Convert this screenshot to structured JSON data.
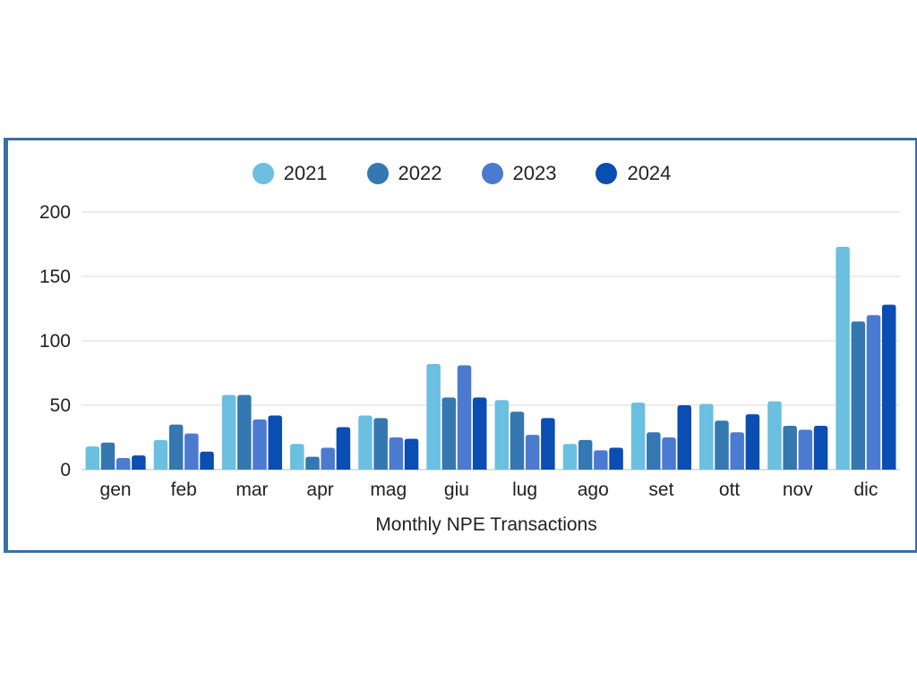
{
  "chart_data": {
    "type": "bar",
    "xlabel": "Monthly NPE Transactions",
    "ylim": [
      0,
      200
    ],
    "yticks": [
      0,
      50,
      100,
      150,
      200
    ],
    "grid": true,
    "legend_position": "top-center",
    "categories": [
      "gen",
      "feb",
      "mar",
      "apr",
      "mag",
      "giu",
      "lug",
      "ago",
      "set",
      "ott",
      "nov",
      "dic"
    ],
    "series": [
      {
        "name": "2021",
        "color": "#6bbfe0",
        "values": [
          18,
          23,
          58,
          20,
          42,
          82,
          54,
          20,
          52,
          51,
          53,
          173
        ]
      },
      {
        "name": "2022",
        "color": "#3577b0",
        "values": [
          21,
          35,
          58,
          10,
          40,
          56,
          45,
          23,
          29,
          38,
          34,
          115
        ]
      },
      {
        "name": "2023",
        "color": "#4b7bd0",
        "values": [
          9,
          28,
          39,
          17,
          25,
          81,
          27,
          15,
          25,
          29,
          31,
          120
        ]
      },
      {
        "name": "2024",
        "color": "#0a4db3",
        "values": [
          11,
          14,
          42,
          33,
          24,
          56,
          40,
          17,
          50,
          43,
          34,
          128
        ]
      }
    ]
  }
}
